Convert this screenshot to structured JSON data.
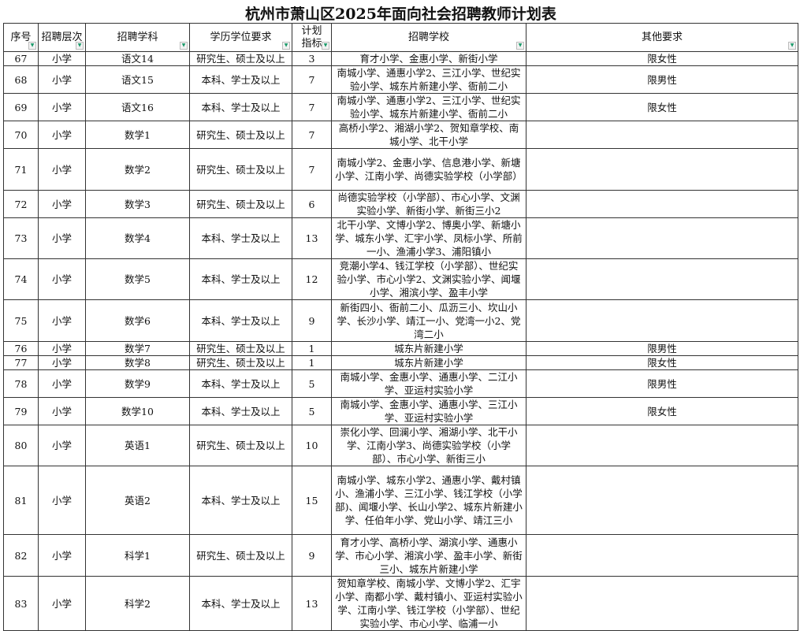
{
  "title": "杭州市萧山区2025年面向社会招聘教师计划表",
  "headers": [
    "序号",
    "招聘层次",
    "招聘学科",
    "学历学位要求",
    "计划指标",
    "招聘学校",
    "其他要求"
  ],
  "filter_icon": "dropdown-filter-icon",
  "rows": [
    {
      "no": "67",
      "level": "小学",
      "subject": "语文14",
      "edu": "研究生、硕士及以上",
      "count": "3",
      "schools": "育才小学、金惠小学、新街小学",
      "other": "限女性"
    },
    {
      "no": "68",
      "level": "小学",
      "subject": "语文15",
      "edu": "本科、学士及以上",
      "count": "7",
      "schools": "南城小学、通惠小学2、三江小学、世纪实验小学、城东片新建小学、衙前二小",
      "other": "限男性"
    },
    {
      "no": "69",
      "level": "小学",
      "subject": "语文16",
      "edu": "本科、学士及以上",
      "count": "7",
      "schools": "南城小学、通惠小学2、三江小学、世纪实验小学、城东片新建小学、衙前二小",
      "other": "限女性"
    },
    {
      "no": "70",
      "level": "小学",
      "subject": "数学1",
      "edu": "研究生、硕士及以上",
      "count": "7",
      "schools": "高桥小学2、湘湖小学2、贺知章学校、南城小学、北干小学",
      "other": ""
    },
    {
      "no": "71",
      "level": "小学",
      "subject": "数学2",
      "edu": "研究生、硕士及以上",
      "count": "7",
      "schools": "南城小学2、金惠小学、信息港小学、新塘小学、江南小学、尚德实验学校（小学部）",
      "other": ""
    },
    {
      "no": "72",
      "level": "小学",
      "subject": "数学3",
      "edu": "研究生、硕士及以上",
      "count": "6",
      "schools": "尚德实验学校（小学部）、市心小学、文渊实验小学、新街小学、新街三小2",
      "other": ""
    },
    {
      "no": "73",
      "level": "小学",
      "subject": "数学4",
      "edu": "本科、学士及以上",
      "count": "13",
      "schools": "北干小学、文博小学2、博奥小学、新塘小学、城东小学、汇宇小学、凤标小学、所前一小、渔浦小学3、浦阳镇小",
      "other": ""
    },
    {
      "no": "74",
      "level": "小学",
      "subject": "数学5",
      "edu": "本科、学士及以上",
      "count": "12",
      "schools": "竞潮小学4、钱江学校（小学部）、世纪实验小学、市心小学2、文渊实验小学、闻堰小学、湘滨小学、盈丰小学",
      "other": ""
    },
    {
      "no": "75",
      "level": "小学",
      "subject": "数学6",
      "edu": "本科、学士及以上",
      "count": "9",
      "schools": "新街四小、衙前二小、瓜沥三小、坎山小学、长沙小学、靖江一小、党湾一小2、党湾二小",
      "other": ""
    },
    {
      "no": "76",
      "level": "小学",
      "subject": "数学7",
      "edu": "研究生、硕士及以上",
      "count": "1",
      "schools": "城东片新建小学",
      "other": "限男性"
    },
    {
      "no": "77",
      "level": "小学",
      "subject": "数学8",
      "edu": "研究生、硕士及以上",
      "count": "1",
      "schools": "城东片新建小学",
      "other": "限女性"
    },
    {
      "no": "78",
      "level": "小学",
      "subject": "数学9",
      "edu": "本科、学士及以上",
      "count": "5",
      "schools": "南城小学、金惠小学、通惠小学、二江小学、亚运村实验小学",
      "other": "限男性"
    },
    {
      "no": "79",
      "level": "小学",
      "subject": "数学10",
      "edu": "本科、学士及以上",
      "count": "5",
      "schools": "南城小学、金惠小学、通惠小学、三江小学、亚运村实验小学",
      "other": "限女性"
    },
    {
      "no": "80",
      "level": "小学",
      "subject": "英语1",
      "edu": "研究生、硕士及以上",
      "count": "10",
      "schools": "崇化小学、回澜小学、湘湖小学、北干小学、江南小学3、尚德实验学校（小学部）、市心小学、新街三小",
      "other": ""
    },
    {
      "no": "81",
      "level": "小学",
      "subject": "英语2",
      "edu": "本科、学士及以上",
      "count": "15",
      "schools": "南城小学、城东小学2、通惠小学、戴村镇小、渔浦小学、三江小学、钱江学校（小学部)、闻堰小学、长山小学2、城东片新建小学、任伯年小学、党山小学、靖江三小",
      "other": ""
    },
    {
      "no": "82",
      "level": "小学",
      "subject": "科学1",
      "edu": "研究生、硕士及以上",
      "count": "9",
      "schools": "育才小学、高桥小学、湖滨小学、通惠小学、市心小学、湘滨小学、盈丰小学、新街三小、城东片新建小学",
      "other": ""
    },
    {
      "no": "83",
      "level": "小学",
      "subject": "科学2",
      "edu": "本科、学士及以上",
      "count": "13",
      "schools": "贺知章学校、南城小学、文博小学2、汇宇小学、南都小学、戴村镇小、亚运村实验小学、江南小学、钱江学校（小学部）、世纪实验小学、市心小学、临浦一小",
      "other": ""
    }
  ]
}
